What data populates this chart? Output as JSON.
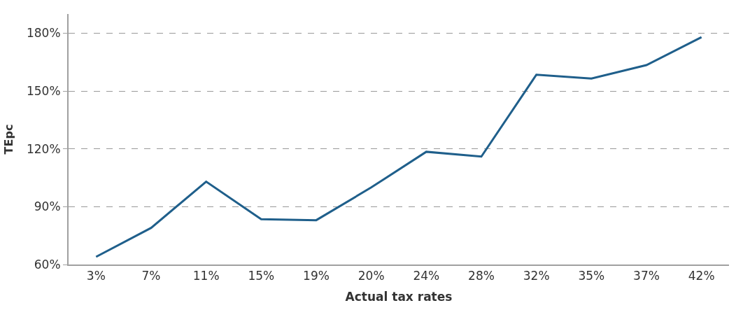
{
  "chart_data": {
    "type": "line",
    "xlabel": "Actual tax rates",
    "ylabel": "TEpc",
    "categories": [
      "3%",
      "7%",
      "11%",
      "15%",
      "19%",
      "20%",
      "24%",
      "28%",
      "32%",
      "35%",
      "37%",
      "42%"
    ],
    "series": [
      {
        "color": "#1f5f8b",
        "values": [
          64,
          79,
          103,
          83.5,
          83,
          100,
          118.5,
          116,
          158.5,
          156.5,
          163.5,
          178
        ]
      }
    ],
    "ylim": [
      60,
      190
    ],
    "yticks": [
      {
        "value": 60,
        "label": "60%"
      },
      {
        "value": 90,
        "label": "90%"
      },
      {
        "value": 120,
        "label": "120%"
      },
      {
        "value": 150,
        "label": "150%"
      },
      {
        "value": 180,
        "label": "180%"
      }
    ],
    "grid": "y",
    "line_style": "solid",
    "marker": "none"
  }
}
